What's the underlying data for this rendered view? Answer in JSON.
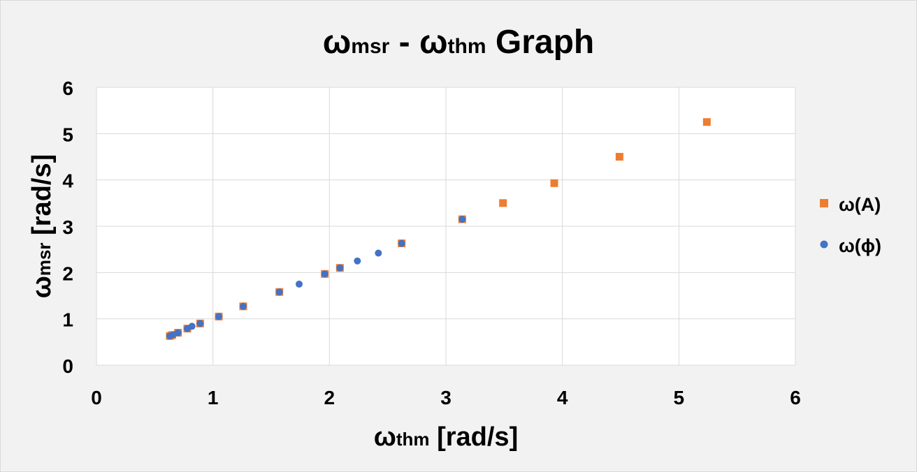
{
  "chart_data": {
    "type": "scatter",
    "title": {
      "main": "ω",
      "sub1": "msr",
      "mid": " - ω",
      "sub2": "thm",
      "end": " Graph"
    },
    "xlabel": {
      "main": "ω",
      "sub": "thm",
      "unit": " [rad/s]"
    },
    "ylabel": {
      "main": "ω",
      "sub": "msr",
      "unit": " [rad/s]"
    },
    "xlim": [
      0,
      6
    ],
    "ylim": [
      0,
      6
    ],
    "x_ticks": [
      "0",
      "1",
      "2",
      "3",
      "4",
      "5",
      "6"
    ],
    "y_ticks": [
      "0",
      "1",
      "2",
      "3",
      "4",
      "5",
      "6"
    ],
    "grid": true,
    "legend_position": "right",
    "series": [
      {
        "name": "ω(A)",
        "marker": "square",
        "color": "#ed7d31",
        "x": [
          0.63,
          0.65,
          0.7,
          0.78,
          0.89,
          1.05,
          1.26,
          1.57,
          1.96,
          2.09,
          2.62,
          3.14,
          3.49,
          3.93,
          4.49,
          5.24
        ],
        "y": [
          0.63,
          0.65,
          0.7,
          0.79,
          0.9,
          1.05,
          1.27,
          1.58,
          1.97,
          2.1,
          2.63,
          3.15,
          3.5,
          3.93,
          4.5,
          5.25
        ]
      },
      {
        "name": "ω(ϕ)",
        "marker": "circle",
        "color": "#4472c4",
        "x": [
          0.63,
          0.66,
          0.7,
          0.78,
          0.82,
          0.89,
          1.05,
          1.26,
          1.57,
          1.74,
          1.96,
          2.09,
          2.24,
          2.42,
          2.62,
          3.14
        ],
        "y": [
          0.63,
          0.66,
          0.7,
          0.79,
          0.84,
          0.9,
          1.05,
          1.27,
          1.58,
          1.75,
          1.97,
          2.1,
          2.25,
          2.42,
          2.63,
          3.15
        ]
      }
    ]
  }
}
